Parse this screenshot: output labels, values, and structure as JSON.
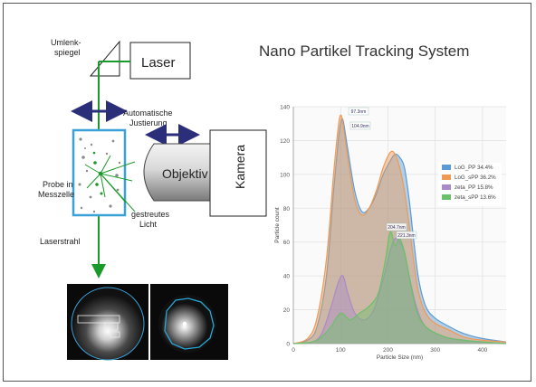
{
  "title": "Nano Partikel Tracking System",
  "diagram": {
    "umlenkspiegel_line1": "Umlenk-",
    "umlenkspiegel_line2": "spiegel",
    "laser": "Laser",
    "justierung_line1": "Automatische",
    "justierung_line2": "Justierung",
    "objektiv": "Objektiv",
    "kamera": "Kamera",
    "probe_line1": "Probe in",
    "probe_line2": "Messzelle",
    "licht_line1": "gestreutes",
    "licht_line2": "Licht",
    "laserstrahl": "Laserstrahl"
  },
  "colors": {
    "laser_beam": "#1a9a2a",
    "arrow": "#2b2f7a",
    "cell_border": "#3aa0d8"
  },
  "chart_data": {
    "type": "area",
    "xlabel": "Particle Size (nm)",
    "ylabel": "Particle count",
    "xlim": [
      0,
      450
    ],
    "ylim": [
      0,
      140
    ],
    "xticks": [
      "0",
      "100",
      "200",
      "300",
      "400"
    ],
    "yticks": [
      "0",
      "20",
      "40",
      "60",
      "80",
      "100",
      "120",
      "140"
    ],
    "grid": true,
    "legend_position": "right",
    "annotations": [
      "97.3nm",
      "104.9nm",
      "204.7nm",
      "221.3nm"
    ],
    "series": [
      {
        "name": "LoG_PP 34.4%",
        "color": "#5b9bd5",
        "x": [
          0,
          30,
          50,
          70,
          85,
          95,
          100,
          105,
          115,
          130,
          145,
          160,
          175,
          190,
          205,
          215,
          225,
          235,
          245,
          255,
          265,
          280,
          300,
          330,
          360,
          400,
          450
        ],
        "y": [
          0,
          2,
          10,
          40,
          90,
          120,
          130,
          132,
          115,
          90,
          78,
          80,
          88,
          100,
          108,
          112,
          110,
          104,
          85,
          60,
          38,
          22,
          15,
          10,
          6,
          3,
          1
        ]
      },
      {
        "name": "LoG_sPP 36.2%",
        "color": "#ed9a55",
        "x": [
          0,
          30,
          50,
          70,
          85,
          95,
          100,
          105,
          115,
          130,
          145,
          160,
          175,
          190,
          205,
          215,
          225,
          235,
          245,
          255,
          265,
          280,
          300,
          330,
          360,
          400,
          450
        ],
        "y": [
          0,
          3,
          15,
          50,
          100,
          128,
          135,
          130,
          110,
          85,
          76,
          80,
          90,
          104,
          113,
          112,
          104,
          90,
          70,
          48,
          30,
          18,
          12,
          8,
          4,
          2,
          1
        ]
      },
      {
        "name": "zeta_PP 15.8%",
        "color": "#a98bc7",
        "x": [
          0,
          40,
          60,
          80,
          95,
          105,
          115,
          130,
          150,
          170,
          190,
          205,
          215,
          225,
          235,
          245,
          260,
          280,
          320,
          360,
          400,
          450
        ],
        "y": [
          0,
          1,
          6,
          22,
          36,
          40,
          30,
          18,
          14,
          20,
          38,
          55,
          62,
          60,
          54,
          40,
          22,
          10,
          4,
          2,
          1,
          0
        ]
      },
      {
        "name": "zeta_sPP 13.6%",
        "color": "#6cc06a",
        "x": [
          0,
          40,
          60,
          80,
          100,
          120,
          140,
          160,
          180,
          195,
          205,
          215,
          225,
          235,
          245,
          260,
          280,
          320,
          360,
          400,
          450
        ],
        "y": [
          0,
          1,
          4,
          10,
          18,
          14,
          18,
          22,
          30,
          50,
          66,
          58,
          62,
          54,
          40,
          20,
          10,
          4,
          2,
          1,
          0
        ]
      }
    ]
  }
}
